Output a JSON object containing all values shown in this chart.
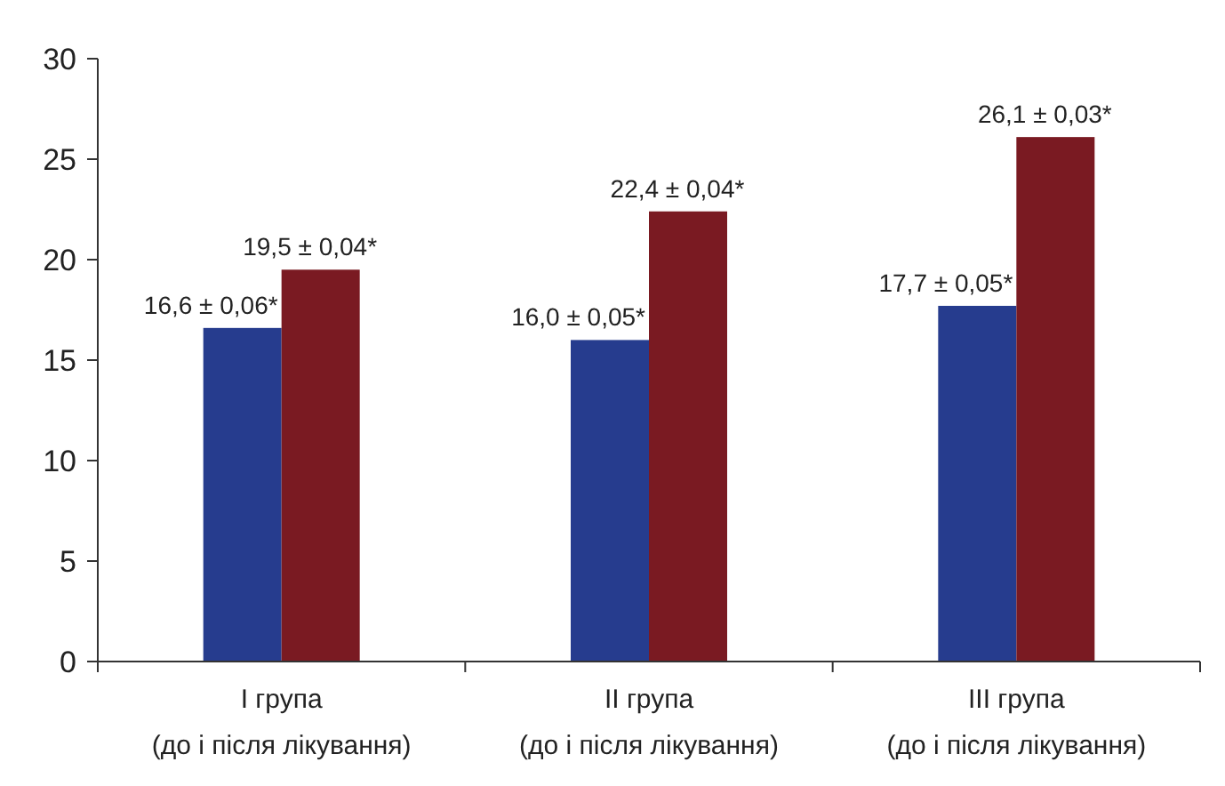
{
  "chart_data": {
    "type": "bar",
    "categories": [
      "I група (до і після лікування)",
      "II група (до і після лікування)",
      "III група (до і після лікування)"
    ],
    "series": [
      {
        "color": "#263c8e",
        "values": [
          16.6,
          16.0,
          17.7
        ],
        "value_labels": [
          "16,6 ± 0,06*",
          "16,0 ± 0,05*",
          "17,7 ± 0,05*"
        ]
      },
      {
        "color": "#7a1a22",
        "values": [
          19.5,
          22.4,
          26.1
        ],
        "value_labels": [
          "19,5 ± 0,04*",
          "22,4 ± 0,04*",
          "26,1 ± 0,03*"
        ]
      }
    ],
    "ylim": [
      0,
      30
    ],
    "yticks": [
      0,
      5,
      10,
      15,
      20,
      25,
      30
    ],
    "grid": false
  }
}
